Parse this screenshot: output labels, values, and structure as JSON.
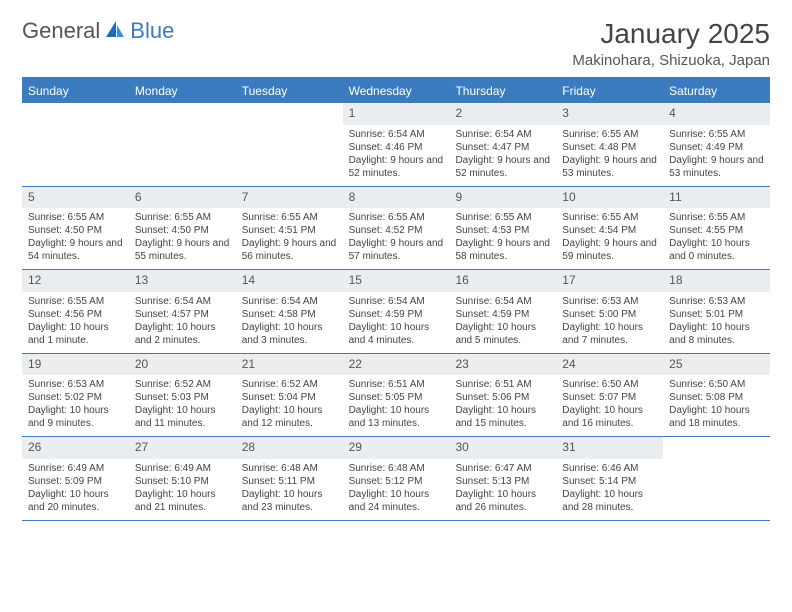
{
  "logo": {
    "part1": "General",
    "part2": "Blue"
  },
  "title": "January 2025",
  "location": "Makinohara, Shizuoka, Japan",
  "colors": {
    "accent": "#3b7bbf",
    "daynum_bg": "#ebeef1",
    "text": "#444444",
    "bg": "#ffffff"
  },
  "typography": {
    "title_fontsize": 28,
    "location_fontsize": 15,
    "header_fontsize": 12,
    "daynum_fontsize": 12,
    "body_fontsize": 10
  },
  "day_headers": [
    "Sunday",
    "Monday",
    "Tuesday",
    "Wednesday",
    "Thursday",
    "Friday",
    "Saturday"
  ],
  "weeks": [
    [
      {
        "n": "",
        "sr": "",
        "ss": "",
        "dl": ""
      },
      {
        "n": "",
        "sr": "",
        "ss": "",
        "dl": ""
      },
      {
        "n": "",
        "sr": "",
        "ss": "",
        "dl": ""
      },
      {
        "n": "1",
        "sr": "Sunrise: 6:54 AM",
        "ss": "Sunset: 4:46 PM",
        "dl": "Daylight: 9 hours and 52 minutes."
      },
      {
        "n": "2",
        "sr": "Sunrise: 6:54 AM",
        "ss": "Sunset: 4:47 PM",
        "dl": "Daylight: 9 hours and 52 minutes."
      },
      {
        "n": "3",
        "sr": "Sunrise: 6:55 AM",
        "ss": "Sunset: 4:48 PM",
        "dl": "Daylight: 9 hours and 53 minutes."
      },
      {
        "n": "4",
        "sr": "Sunrise: 6:55 AM",
        "ss": "Sunset: 4:49 PM",
        "dl": "Daylight: 9 hours and 53 minutes."
      }
    ],
    [
      {
        "n": "5",
        "sr": "Sunrise: 6:55 AM",
        "ss": "Sunset: 4:50 PM",
        "dl": "Daylight: 9 hours and 54 minutes."
      },
      {
        "n": "6",
        "sr": "Sunrise: 6:55 AM",
        "ss": "Sunset: 4:50 PM",
        "dl": "Daylight: 9 hours and 55 minutes."
      },
      {
        "n": "7",
        "sr": "Sunrise: 6:55 AM",
        "ss": "Sunset: 4:51 PM",
        "dl": "Daylight: 9 hours and 56 minutes."
      },
      {
        "n": "8",
        "sr": "Sunrise: 6:55 AM",
        "ss": "Sunset: 4:52 PM",
        "dl": "Daylight: 9 hours and 57 minutes."
      },
      {
        "n": "9",
        "sr": "Sunrise: 6:55 AM",
        "ss": "Sunset: 4:53 PM",
        "dl": "Daylight: 9 hours and 58 minutes."
      },
      {
        "n": "10",
        "sr": "Sunrise: 6:55 AM",
        "ss": "Sunset: 4:54 PM",
        "dl": "Daylight: 9 hours and 59 minutes."
      },
      {
        "n": "11",
        "sr": "Sunrise: 6:55 AM",
        "ss": "Sunset: 4:55 PM",
        "dl": "Daylight: 10 hours and 0 minutes."
      }
    ],
    [
      {
        "n": "12",
        "sr": "Sunrise: 6:55 AM",
        "ss": "Sunset: 4:56 PM",
        "dl": "Daylight: 10 hours and 1 minute."
      },
      {
        "n": "13",
        "sr": "Sunrise: 6:54 AM",
        "ss": "Sunset: 4:57 PM",
        "dl": "Daylight: 10 hours and 2 minutes."
      },
      {
        "n": "14",
        "sr": "Sunrise: 6:54 AM",
        "ss": "Sunset: 4:58 PM",
        "dl": "Daylight: 10 hours and 3 minutes."
      },
      {
        "n": "15",
        "sr": "Sunrise: 6:54 AM",
        "ss": "Sunset: 4:59 PM",
        "dl": "Daylight: 10 hours and 4 minutes."
      },
      {
        "n": "16",
        "sr": "Sunrise: 6:54 AM",
        "ss": "Sunset: 4:59 PM",
        "dl": "Daylight: 10 hours and 5 minutes."
      },
      {
        "n": "17",
        "sr": "Sunrise: 6:53 AM",
        "ss": "Sunset: 5:00 PM",
        "dl": "Daylight: 10 hours and 7 minutes."
      },
      {
        "n": "18",
        "sr": "Sunrise: 6:53 AM",
        "ss": "Sunset: 5:01 PM",
        "dl": "Daylight: 10 hours and 8 minutes."
      }
    ],
    [
      {
        "n": "19",
        "sr": "Sunrise: 6:53 AM",
        "ss": "Sunset: 5:02 PM",
        "dl": "Daylight: 10 hours and 9 minutes."
      },
      {
        "n": "20",
        "sr": "Sunrise: 6:52 AM",
        "ss": "Sunset: 5:03 PM",
        "dl": "Daylight: 10 hours and 11 minutes."
      },
      {
        "n": "21",
        "sr": "Sunrise: 6:52 AM",
        "ss": "Sunset: 5:04 PM",
        "dl": "Daylight: 10 hours and 12 minutes."
      },
      {
        "n": "22",
        "sr": "Sunrise: 6:51 AM",
        "ss": "Sunset: 5:05 PM",
        "dl": "Daylight: 10 hours and 13 minutes."
      },
      {
        "n": "23",
        "sr": "Sunrise: 6:51 AM",
        "ss": "Sunset: 5:06 PM",
        "dl": "Daylight: 10 hours and 15 minutes."
      },
      {
        "n": "24",
        "sr": "Sunrise: 6:50 AM",
        "ss": "Sunset: 5:07 PM",
        "dl": "Daylight: 10 hours and 16 minutes."
      },
      {
        "n": "25",
        "sr": "Sunrise: 6:50 AM",
        "ss": "Sunset: 5:08 PM",
        "dl": "Daylight: 10 hours and 18 minutes."
      }
    ],
    [
      {
        "n": "26",
        "sr": "Sunrise: 6:49 AM",
        "ss": "Sunset: 5:09 PM",
        "dl": "Daylight: 10 hours and 20 minutes."
      },
      {
        "n": "27",
        "sr": "Sunrise: 6:49 AM",
        "ss": "Sunset: 5:10 PM",
        "dl": "Daylight: 10 hours and 21 minutes."
      },
      {
        "n": "28",
        "sr": "Sunrise: 6:48 AM",
        "ss": "Sunset: 5:11 PM",
        "dl": "Daylight: 10 hours and 23 minutes."
      },
      {
        "n": "29",
        "sr": "Sunrise: 6:48 AM",
        "ss": "Sunset: 5:12 PM",
        "dl": "Daylight: 10 hours and 24 minutes."
      },
      {
        "n": "30",
        "sr": "Sunrise: 6:47 AM",
        "ss": "Sunset: 5:13 PM",
        "dl": "Daylight: 10 hours and 26 minutes."
      },
      {
        "n": "31",
        "sr": "Sunrise: 6:46 AM",
        "ss": "Sunset: 5:14 PM",
        "dl": "Daylight: 10 hours and 28 minutes."
      },
      {
        "n": "",
        "sr": "",
        "ss": "",
        "dl": ""
      }
    ]
  ]
}
